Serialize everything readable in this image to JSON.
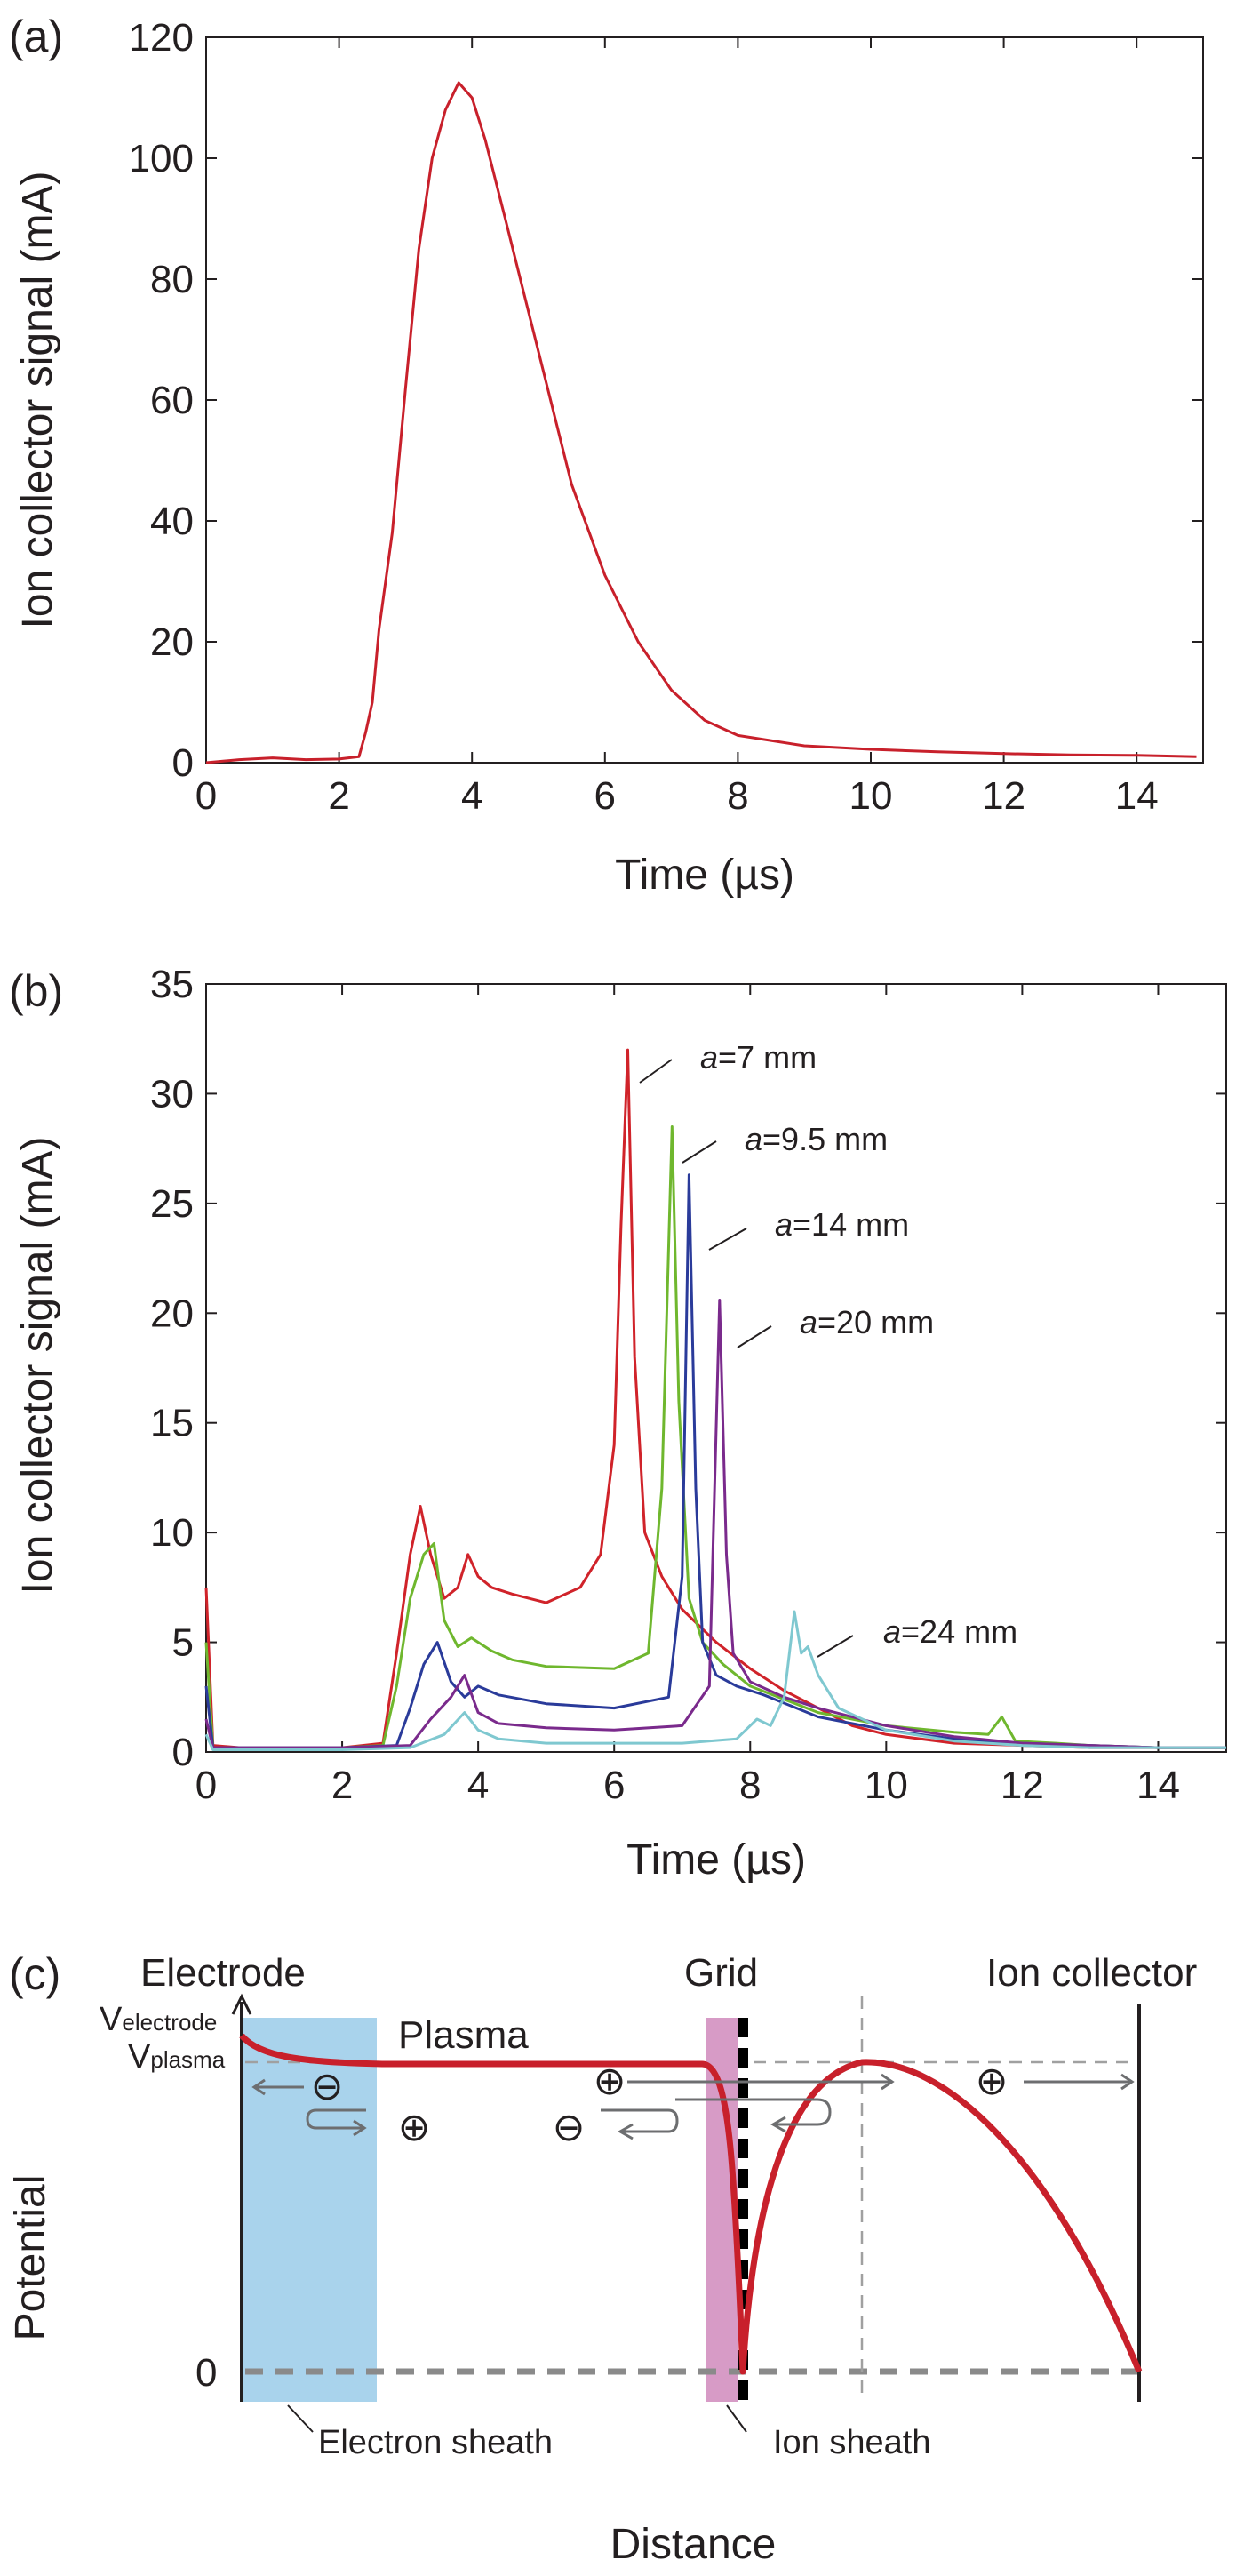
{
  "chart_data": [
    {
      "panel_label": "(a)",
      "type": "line",
      "xlabel": "Time (µs)",
      "ylabel": "Ion collector signal (mA)",
      "xlim": [
        0,
        15
      ],
      "ylim": [
        0,
        120
      ],
      "xticks": [
        "0",
        "2",
        "4",
        "6",
        "8",
        "10",
        "12",
        "14"
      ],
      "yticks": [
        "0",
        "20",
        "40",
        "60",
        "80",
        "100",
        "120"
      ],
      "grid": false,
      "series": [
        {
          "color": "#c8202b",
          "x": [
            0,
            0.5,
            1.0,
            1.5,
            2.0,
            2.3,
            2.4,
            2.5,
            2.6,
            2.8,
            3.0,
            3.2,
            3.4,
            3.6,
            3.8,
            4.0,
            4.2,
            4.5,
            5.0,
            5.5,
            6.0,
            6.5,
            7.0,
            7.5,
            8.0,
            9.0,
            10.0,
            11.0,
            12.0,
            13.0,
            14.0,
            14.9
          ],
          "y": [
            0,
            0.5,
            0.8,
            0.5,
            0.6,
            1.0,
            5.0,
            10.0,
            22.0,
            38.0,
            62.0,
            85.0,
            100.0,
            108.0,
            112.5,
            110.0,
            103.0,
            90.0,
            68.0,
            46.0,
            31.0,
            20.0,
            12.0,
            7.0,
            4.5,
            2.8,
            2.2,
            1.8,
            1.5,
            1.3,
            1.2,
            1.0
          ]
        }
      ]
    },
    {
      "panel_label": "(b)",
      "type": "line",
      "xlabel": "Time (µs)",
      "ylabel": "Ion collector signal (mA)",
      "xlim": [
        0,
        15
      ],
      "ylim": [
        0,
        35
      ],
      "xticks": [
        "0",
        "2",
        "4",
        "6",
        "8",
        "10",
        "12",
        "14"
      ],
      "yticks": [
        "0",
        "5",
        "10",
        "15",
        "20",
        "25",
        "30",
        "35"
      ],
      "grid": false,
      "annotations": [
        {
          "prefix": "a",
          "text": "=7 mm"
        },
        {
          "prefix": "a",
          "text": "=9.5 mm"
        },
        {
          "prefix": "a",
          "text": "=14 mm"
        },
        {
          "prefix": "a",
          "text": "=20 mm"
        },
        {
          "prefix": "a",
          "text": "=24 mm"
        }
      ],
      "series": [
        {
          "color": "#d0232a",
          "x": [
            -0.05,
            0.1,
            0.5,
            1.0,
            2.0,
            2.6,
            2.8,
            3.0,
            3.15,
            3.3,
            3.5,
            3.7,
            3.85,
            4.0,
            4.2,
            4.5,
            5.0,
            5.5,
            5.8,
            6.0,
            6.1,
            6.2,
            6.3,
            6.45,
            6.7,
            7.0,
            7.5,
            8.0,
            8.5,
            9.0,
            9.5,
            10.0,
            11.0,
            12.0,
            13.0,
            14.0,
            15.0
          ],
          "y": [
            7.5,
            0.3,
            0.2,
            0.2,
            0.2,
            0.4,
            4.5,
            9.0,
            11.2,
            9.0,
            7.0,
            7.5,
            9.0,
            8.0,
            7.5,
            7.2,
            6.8,
            7.5,
            9.0,
            14.0,
            24.0,
            32.0,
            18.0,
            10.0,
            8.0,
            6.5,
            5.0,
            3.8,
            2.8,
            2.0,
            1.2,
            0.8,
            0.4,
            0.3,
            0.2,
            0.2,
            0.2
          ]
        },
        {
          "color": "#6fb72e",
          "x": [
            -0.05,
            0.1,
            1.0,
            2.0,
            2.6,
            2.8,
            3.0,
            3.2,
            3.35,
            3.5,
            3.7,
            3.9,
            4.2,
            4.5,
            5.0,
            6.0,
            6.5,
            6.7,
            6.85,
            6.95,
            7.1,
            7.3,
            7.6,
            8.0,
            9.0,
            10.0,
            11.0,
            11.5,
            11.7,
            11.9,
            12.5,
            13.0,
            14.0,
            15.0
          ],
          "y": [
            5.0,
            0.2,
            0.2,
            0.2,
            0.3,
            3.0,
            7.0,
            9.0,
            9.5,
            6.0,
            4.8,
            5.2,
            4.6,
            4.2,
            3.9,
            3.8,
            4.5,
            12.0,
            28.5,
            16.0,
            7.0,
            5.0,
            4.0,
            3.0,
            1.8,
            1.2,
            0.9,
            0.8,
            1.6,
            0.5,
            0.4,
            0.3,
            0.2,
            0.2
          ]
        },
        {
          "color": "#2a3b9a",
          "x": [
            -0.05,
            0.1,
            1.0,
            2.0,
            2.8,
            3.0,
            3.2,
            3.4,
            3.6,
            3.8,
            4.0,
            4.3,
            5.0,
            6.0,
            6.8,
            7.0,
            7.1,
            7.2,
            7.3,
            7.5,
            7.8,
            8.2,
            9.0,
            10.0,
            11.0,
            12.0,
            13.0,
            14.0,
            15.0
          ],
          "y": [
            3.0,
            0.2,
            0.2,
            0.2,
            0.3,
            2.0,
            4.0,
            5.0,
            3.2,
            2.5,
            3.0,
            2.6,
            2.2,
            2.0,
            2.5,
            8.0,
            26.3,
            12.0,
            5.0,
            3.5,
            3.0,
            2.6,
            1.6,
            1.0,
            0.6,
            0.4,
            0.3,
            0.2,
            0.2
          ]
        },
        {
          "color": "#7a2a8c",
          "x": [
            -0.05,
            0.1,
            1.0,
            2.0,
            3.0,
            3.3,
            3.6,
            3.8,
            4.0,
            4.3,
            5.0,
            6.0,
            7.0,
            7.4,
            7.55,
            7.65,
            7.75,
            8.0,
            8.5,
            9.0,
            10.0,
            11.0,
            12.0,
            13.0,
            14.0,
            15.0
          ],
          "y": [
            1.5,
            0.2,
            0.2,
            0.2,
            0.3,
            1.5,
            2.5,
            3.5,
            1.8,
            1.3,
            1.1,
            1.0,
            1.2,
            3.0,
            20.6,
            9.0,
            4.5,
            3.2,
            2.5,
            2.0,
            1.2,
            0.7,
            0.4,
            0.3,
            0.2,
            0.2
          ]
        },
        {
          "color": "#7fc8d0",
          "x": [
            -0.05,
            0.1,
            1.0,
            2.0,
            3.0,
            3.5,
            3.8,
            4.0,
            4.3,
            5.0,
            6.0,
            7.0,
            7.8,
            8.1,
            8.3,
            8.5,
            8.65,
            8.75,
            8.85,
            9.0,
            9.3,
            10.0,
            11.0,
            12.0,
            13.0,
            14.0,
            15.0
          ],
          "y": [
            0.8,
            0.1,
            0.1,
            0.1,
            0.2,
            0.8,
            1.8,
            1.0,
            0.6,
            0.4,
            0.4,
            0.4,
            0.6,
            1.5,
            1.2,
            2.5,
            6.4,
            4.5,
            4.8,
            3.5,
            2.0,
            1.0,
            0.5,
            0.3,
            0.2,
            0.2,
            0.2
          ]
        }
      ]
    }
  ],
  "diagram": {
    "panel_label": "(c)",
    "xlabel": "Distance",
    "ylabel": "Potential",
    "labels": {
      "electrode": "Electrode",
      "grid": "Grid",
      "ion_collector": "Ion collector",
      "plasma": "Plasma",
      "v_electrode_main": "V",
      "v_electrode_sub": "electrode",
      "v_plasma_main": "V",
      "v_plasma_sub": "plasma",
      "zero": "0",
      "electron_sheath": "Electron sheath",
      "ion_sheath": "Ion sheath"
    },
    "symbols": {
      "minus": "⊖",
      "plus": "⊕"
    },
    "colors": {
      "curve": "#c8202b",
      "electron_sheath_fill": "#a9d3ec",
      "ion_sheath_fill": "#d79bc6",
      "arrow": "#6d6e70",
      "dashed": "#8a8a8a"
    }
  }
}
